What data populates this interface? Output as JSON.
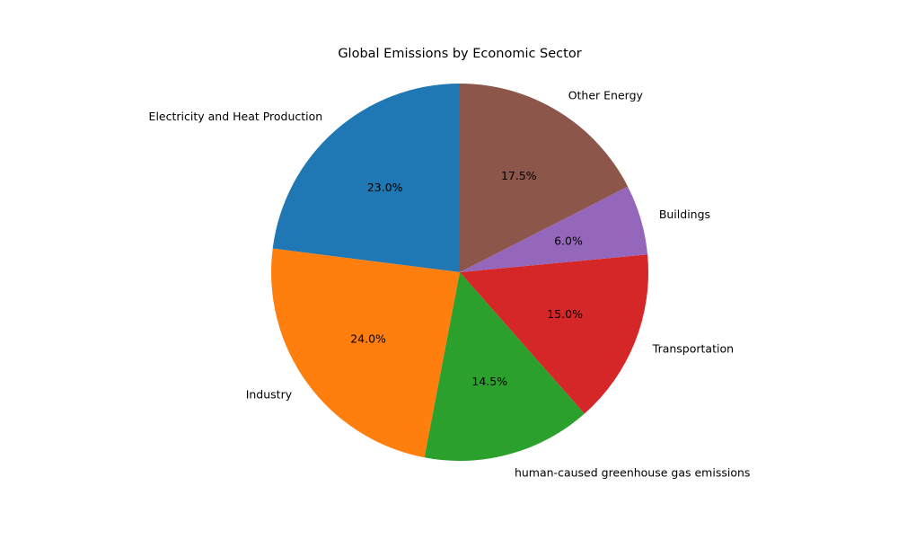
{
  "chart_data": {
    "type": "pie",
    "title": "Global Emissions by Economic Sector",
    "start_angle_deg": 90,
    "direction": "counterclockwise",
    "slices": [
      {
        "label": "Electricity and Heat Production",
        "value": 23.0,
        "pct_label": "23.0%",
        "color": "#1f77b4"
      },
      {
        "label": "Industry",
        "value": 24.0,
        "pct_label": "24.0%",
        "color": "#ff7f0e"
      },
      {
        "label": "human-caused greenhouse gas emissions",
        "value": 14.5,
        "pct_label": "14.5%",
        "color": "#2ca02c"
      },
      {
        "label": "Transportation",
        "value": 15.0,
        "pct_label": "15.0%",
        "color": "#d62728"
      },
      {
        "label": "Buildings",
        "value": 6.0,
        "pct_label": "6.0%",
        "color": "#9467bd"
      },
      {
        "label": "Other Energy",
        "value": 17.5,
        "pct_label": "17.5%",
        "color": "#8c564b"
      }
    ]
  }
}
